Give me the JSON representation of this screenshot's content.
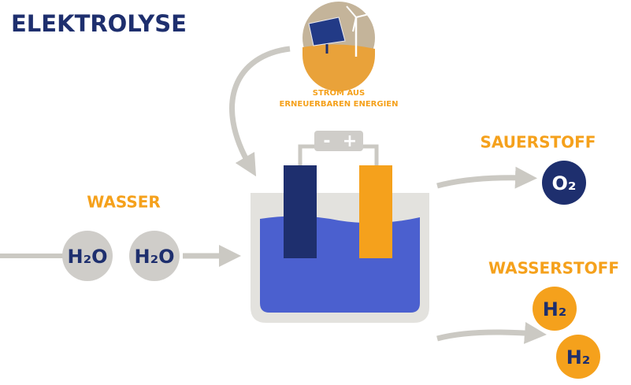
{
  "title": "ELEKTROLYSE",
  "power_source": {
    "lines": [
      "STROM AUS",
      "ERNEUERBAREN ENERGIEN"
    ]
  },
  "power_box": {
    "minus": "-",
    "plus": "+"
  },
  "input": {
    "label": "WASSER",
    "molecules": [
      "H₂O",
      "H₂O"
    ]
  },
  "outputs": [
    {
      "label": "SAUERSTOFF",
      "molecules": [
        "O₂"
      ]
    },
    {
      "label": "WASSERSTOFF",
      "molecules": [
        "H₂",
        "H₂"
      ]
    }
  ]
}
